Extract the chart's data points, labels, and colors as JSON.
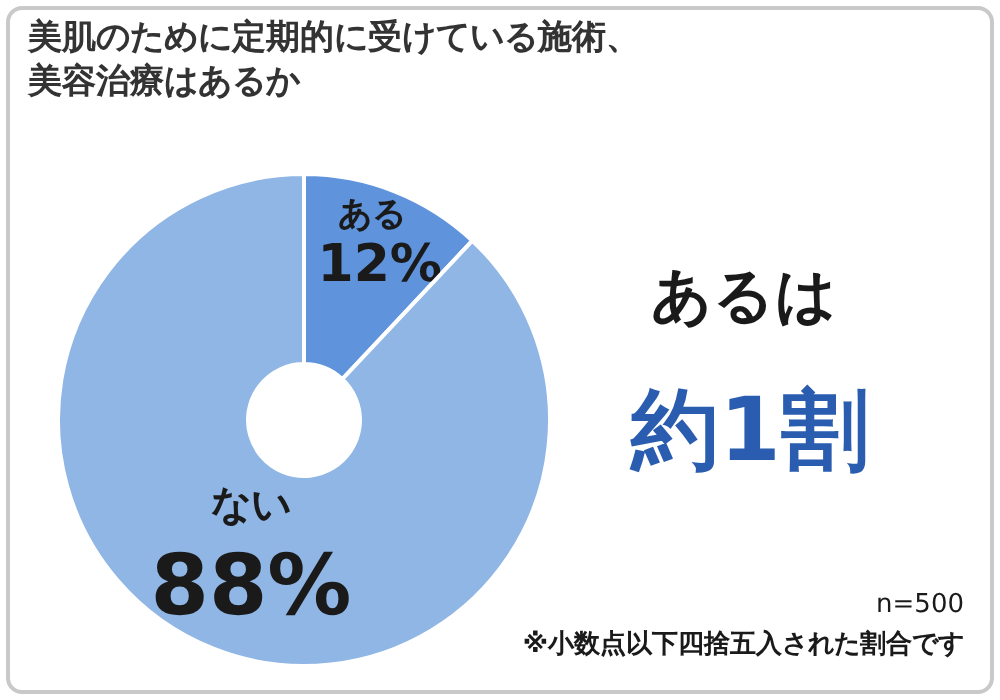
{
  "chart_data": {
    "type": "donut",
    "title": "美肌のために定期的に受けている施術、美容治療はあるか",
    "categories": [
      "ある",
      "ない"
    ],
    "values": [
      12,
      88
    ],
    "colors": [
      "#5f93dc",
      "#8fb6e4"
    ],
    "value_labels": [
      "12%",
      "88%"
    ],
    "annotations": [
      "あるは",
      "約1割",
      "n=500",
      "※小数点以下四捨五入された割合です"
    ]
  }
}
